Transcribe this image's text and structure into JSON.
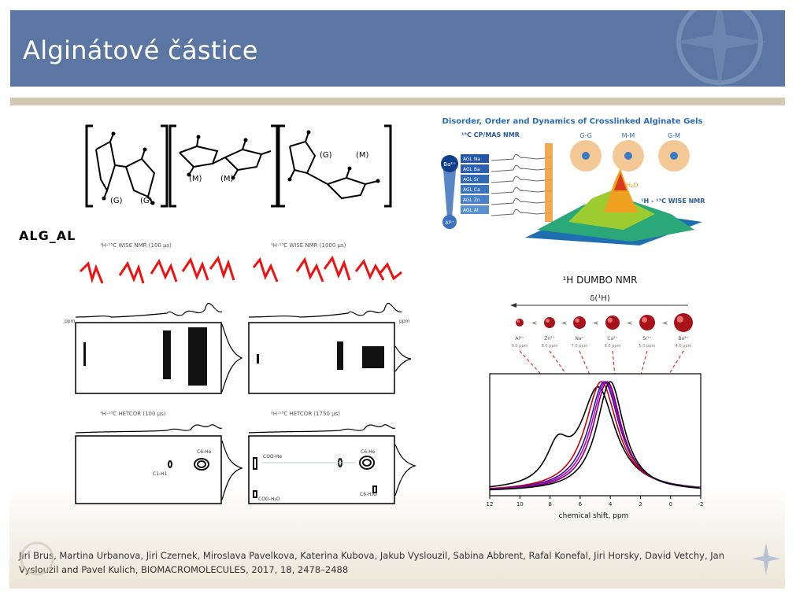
{
  "slide": {
    "title": "Alginátové částice",
    "sample_label": "ALG_AL",
    "citation": "Jiri Brus, Martina Urbanova, Jiri Czernek, Miroslava Pavelkova, Katerina Kubova, Jakub Vyslouzil, Sabina Abbrent, Rafal Konefal, Jiri Horsky, David Vetchy, Jan Vyslouzil and Pavel Kulich, BIOMACROMOLECULES, 2017, 18, 2478–2488"
  },
  "structure_figure": {
    "labels": [
      "(G)",
      "(G)",
      "(M)",
      "(M)",
      "(G)",
      "(M)"
    ]
  },
  "nmr_panels": {
    "top_left_title": "¹H-¹³C WISE NMR (100 μs)",
    "top_right_title": "¹H-¹³C WISE NMR (1000 μs)",
    "bottom_left_title": "¹H-¹³C HETCOR (100 μs)",
    "bottom_right_title": "¹H-¹³C HETCOR (1750 μs)",
    "axis_unit": "ppm",
    "ann_c6_he": "C6-He",
    "ann_c1_h1": "C1-H1",
    "ann_coo_he": "COO-He",
    "ann_coo_h2o": "COO-H₂O",
    "ann_c6_h2o": "C6-H₂O"
  },
  "toc_graphic": {
    "title": "Disorder, Order and Dynamics of Crosslinked Alginate Gels",
    "cpmas_label": "¹³C CP/MAS NMR",
    "wise_label": "¹H - ¹³C WISE NMR",
    "h2o_label": "H₂O",
    "samples": [
      "AGL Na",
      "AGL Ba",
      "AGL Sr",
      "AGL Ca",
      "AGL Zn",
      "AGL Al"
    ],
    "ion_top": "Ba²⁺",
    "ion_bottom": "Al³⁺",
    "junctions": [
      "G-G",
      "M-M",
      "G-M"
    ]
  },
  "dumbo_chart": {
    "title": "¹H DUMBO NMR",
    "delta_label": "δ(¹H)",
    "ions": [
      {
        "name": "Al³⁺",
        "ppm": "9.0 ppm"
      },
      {
        "name": "Zn²⁺",
        "ppm": "8.0 ppm"
      },
      {
        "name": "Na⁺",
        "ppm": "7.0 ppm"
      },
      {
        "name": "Ca²⁺",
        "ppm": "6.0 ppm"
      },
      {
        "name": "Sr²⁺",
        "ppm": "5.0 ppm"
      },
      {
        "name": "Ba²⁺",
        "ppm": "4.0 ppm"
      }
    ],
    "xlabel": "chemical shift, ppm",
    "xticks": [
      "12",
      "10",
      "8",
      "6",
      "4",
      "2",
      "0",
      "-2"
    ],
    "colors": [
      "#000000",
      "#cc0000",
      "#1a1aa8",
      "#c000c0",
      "#7a0070",
      "#000000"
    ]
  }
}
